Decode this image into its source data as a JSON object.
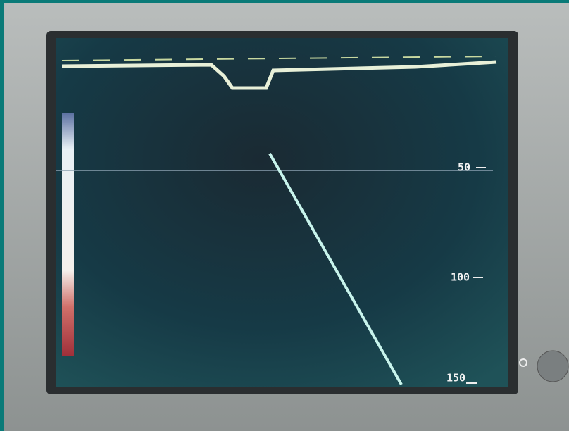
{
  "depth_scale": {
    "labels": [
      "50",
      "100",
      "150"
    ]
  }
}
